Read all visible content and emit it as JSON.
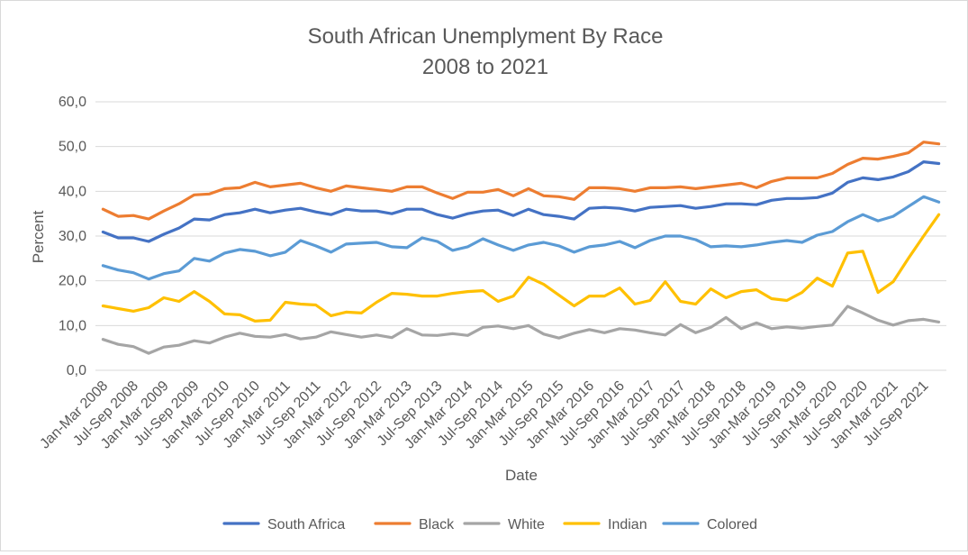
{
  "chart_data": {
    "type": "line",
    "title": [
      "South African Unemplyment By Race",
      "2008 to 2021"
    ],
    "xlabel": "Date",
    "ylabel": "Percent",
    "ylim": [
      0,
      60
    ],
    "ytick_labels": [
      "0,0",
      "10,0",
      "20,0",
      "30,0",
      "40,0",
      "50,0",
      "60,0"
    ],
    "xtick_labels": [
      "Jan-Mar 2008",
      "Jul-Sep 2008",
      "Jan-Mar 2009",
      "Jul-Sep 2009",
      "Jan-Mar 2010",
      "Jul-Sep 2010",
      "Jan-Mar 2011",
      "Jul-Sep 2011",
      "Jan-Mar 2012",
      "Jul-Sep 2012",
      "Jan-Mar 2013",
      "Jul-Sep 2013",
      "Jan-Mar 2014",
      "Jul-Sep 2014",
      "Jan-Mar 2015",
      "Jul-Sep 2015",
      "Jan-Mar 2016",
      "Jul-Sep 2016",
      "Jan-Mar 2017",
      "Jul-Sep 2017",
      "Jan-Mar 2018",
      "Jul-Sep 2018",
      "Jan-Mar 2019",
      "Jul-Sep 2019",
      "Jan-Mar 2020",
      "Jul-Sep 2020",
      "Jan-Mar 2021",
      "Jul-Sep 2021"
    ],
    "legend_position": "bottom",
    "grid": true,
    "series": [
      {
        "name": "South Africa",
        "color": "#4472C4",
        "values": [
          30.9,
          29.6,
          29.6,
          28.8,
          30.4,
          31.8,
          33.8,
          33.6,
          34.8,
          35.2,
          36.0,
          35.2,
          35.8,
          36.2,
          35.4,
          34.8,
          36.0,
          35.6,
          35.6,
          35.0,
          36.0,
          36.0,
          34.8,
          34.0,
          35.0,
          35.6,
          35.8,
          34.6,
          36.0,
          34.8,
          34.4,
          33.8,
          36.2,
          36.4,
          36.2,
          35.6,
          36.4,
          36.6,
          36.8,
          36.2,
          36.6,
          37.2,
          37.2,
          37.0,
          38.0,
          38.4,
          38.4,
          38.6,
          39.6,
          42.0,
          43.0,
          42.6,
          43.2,
          44.4,
          46.6,
          46.2
        ]
      },
      {
        "name": "Black",
        "color": "#ED7D31",
        "values": [
          36.0,
          34.4,
          34.6,
          33.8,
          35.6,
          37.2,
          39.2,
          39.4,
          40.6,
          40.8,
          42.0,
          41.0,
          41.4,
          41.8,
          40.8,
          40.0,
          41.2,
          40.8,
          40.4,
          40.0,
          41.0,
          41.0,
          39.6,
          38.4,
          39.8,
          39.8,
          40.4,
          39.0,
          40.6,
          39.0,
          38.8,
          38.2,
          40.8,
          40.8,
          40.6,
          40.0,
          40.8,
          40.8,
          41.0,
          40.6,
          41.0,
          41.4,
          41.8,
          40.8,
          42.2,
          43.0,
          43.0,
          43.0,
          44.0,
          46.0,
          47.4,
          47.2,
          47.8,
          48.6,
          51.0,
          50.6
        ]
      },
      {
        "name": "White",
        "color": "#A5A5A5",
        "values": [
          6.9,
          5.8,
          5.3,
          3.8,
          5.2,
          5.6,
          6.6,
          6.1,
          7.4,
          8.3,
          7.6,
          7.4,
          8.0,
          7.0,
          7.4,
          8.6,
          8.0,
          7.4,
          7.9,
          7.3,
          9.3,
          7.9,
          7.8,
          8.2,
          7.8,
          9.6,
          9.9,
          9.3,
          10.0,
          8.1,
          7.2,
          8.3,
          9.1,
          8.4,
          9.3,
          9.0,
          8.4,
          7.9,
          10.2,
          8.4,
          9.6,
          11.8,
          9.3,
          10.6,
          9.3,
          9.7,
          9.4,
          9.8,
          10.1,
          14.3,
          12.8,
          11.2,
          10.1,
          11.1,
          11.4,
          10.8
        ]
      },
      {
        "name": "Indian",
        "color": "#FFC000",
        "values": [
          14.4,
          13.8,
          13.2,
          14.0,
          16.2,
          15.4,
          17.6,
          15.4,
          12.6,
          12.4,
          11.0,
          11.2,
          15.2,
          14.8,
          14.6,
          12.2,
          13.0,
          12.8,
          15.2,
          17.2,
          17.0,
          16.6,
          16.6,
          17.2,
          17.6,
          17.8,
          15.4,
          16.6,
          20.8,
          19.2,
          16.8,
          14.4,
          16.6,
          16.6,
          18.4,
          14.8,
          15.6,
          19.8,
          15.4,
          14.8,
          18.2,
          16.2,
          17.6,
          18.0,
          16.0,
          15.6,
          17.4,
          20.6,
          18.8,
          26.2,
          26.6,
          17.4,
          19.8,
          25.0,
          30.0,
          34.8
        ]
      },
      {
        "name": "Colored",
        "color": "#5B9BD5",
        "values": [
          23.4,
          22.4,
          21.8,
          20.4,
          21.6,
          22.2,
          25.0,
          24.4,
          26.2,
          27.0,
          26.6,
          25.6,
          26.4,
          29.0,
          27.8,
          26.4,
          28.2,
          28.4,
          28.6,
          27.6,
          27.4,
          29.6,
          28.8,
          26.8,
          27.6,
          29.4,
          28.0,
          26.8,
          28.0,
          28.6,
          27.8,
          26.4,
          27.6,
          28.0,
          28.8,
          27.4,
          29.0,
          30.0,
          30.0,
          29.2,
          27.6,
          27.8,
          27.6,
          28.0,
          28.6,
          29.0,
          28.6,
          30.2,
          31.0,
          33.2,
          34.8,
          33.4,
          34.4,
          36.6,
          38.8,
          37.6
        ]
      }
    ]
  }
}
